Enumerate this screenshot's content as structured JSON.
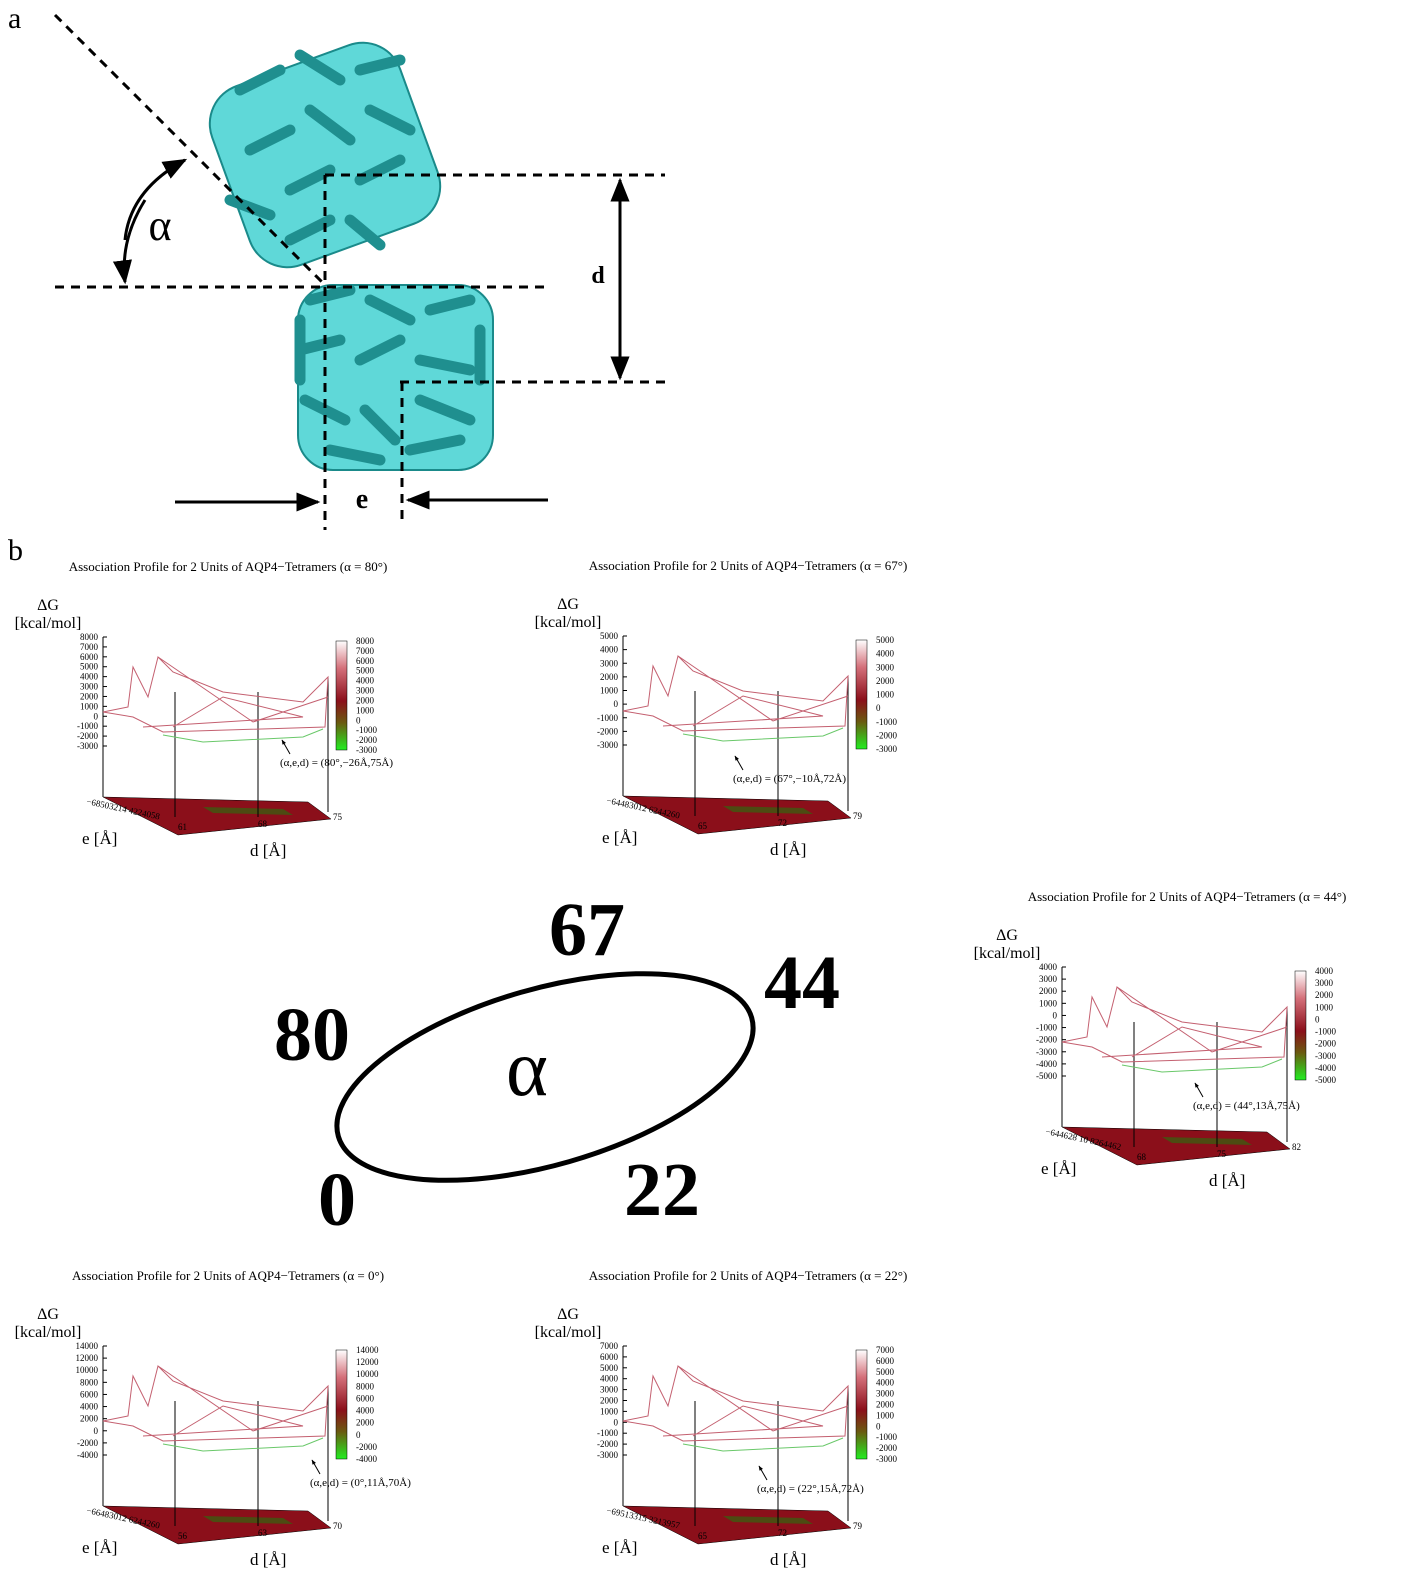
{
  "panel_a": {
    "label": "a",
    "angle": "α",
    "distance": "d",
    "offset": "e"
  },
  "panel_b": {
    "label": "b",
    "plots": [
      {
        "title": "Association Profile for 2 Units of AQP4−Tetramers (α = 80°)",
        "z_label": "ΔG",
        "z_unit": "[kcal/mol]",
        "z_ticks": [
          8000,
          7000,
          6000,
          5000,
          4000,
          3000,
          2000,
          1000,
          0,
          -1000,
          -2000,
          -3000
        ],
        "colorbar_ticks": [
          8000,
          7000,
          6000,
          5000,
          4000,
          3000,
          2000,
          1000,
          0,
          -1000,
          -2000,
          -3000
        ],
        "e_label": "e [Å]",
        "e_ticks": "−68503214 4224058",
        "d_label": "d [Å]",
        "d_ticks": [
          "61",
          "68",
          "75"
        ],
        "annotation": "(α,e,d) = (80°,−26Å,75Å)"
      },
      {
        "title": "Association Profile for 2 Units of AQP4−Tetramers (α = 67°)",
        "z_label": "ΔG",
        "z_unit": "[kcal/mol]",
        "z_ticks": [
          5000,
          4000,
          3000,
          2000,
          1000,
          0,
          -1000,
          -2000,
          -3000
        ],
        "colorbar_ticks": [
          5000,
          4000,
          3000,
          2000,
          1000,
          0,
          -1000,
          -2000,
          -3000
        ],
        "e_label": "e [Å]",
        "e_ticks": "−64483012 6244260",
        "d_label": "d [Å]",
        "d_ticks": [
          "65",
          "72",
          "79"
        ],
        "annotation": "(α,e,d) = (67°,−10Å,72Å)"
      },
      {
        "title": "Association Profile for 2 Units of AQP4−Tetramers (α = 44°)",
        "z_label": "ΔG",
        "z_unit": "[kcal/mol]",
        "z_ticks": [
          4000,
          3000,
          2000,
          1000,
          0,
          -1000,
          -2000,
          -3000,
          -4000,
          -5000
        ],
        "colorbar_ticks": [
          4000,
          3000,
          2000,
          1000,
          0,
          -1000,
          -2000,
          -3000,
          -4000,
          -5000
        ],
        "e_label": "e [Å]",
        "e_ticks": "−644628 10 8264462",
        "d_label": "d [Å]",
        "d_ticks": [
          "68",
          "75",
          "82"
        ],
        "annotation": "(α,e,d) = (44°,13Å,75Å)"
      },
      {
        "title": "Association Profile for 2 Units of AQP4−Tetramers (α = 0°)",
        "z_label": "ΔG",
        "z_unit": "[kcal/mol]",
        "z_ticks": [
          14000,
          12000,
          10000,
          8000,
          6000,
          4000,
          2000,
          0,
          -2000,
          -4000
        ],
        "colorbar_ticks": [
          14000,
          12000,
          10000,
          8000,
          6000,
          4000,
          2000,
          0,
          -2000,
          -4000
        ],
        "e_label": "e [Å]",
        "e_ticks": "−66483012 6244260",
        "d_label": "d [Å]",
        "d_ticks": [
          "56",
          "63",
          "70"
        ],
        "annotation": "(α,e,d) = (0°,11Å,70Å)"
      },
      {
        "title": "Association Profile for 2 Units of AQP4−Tetramers (α = 22°)",
        "z_label": "ΔG",
        "z_unit": "[kcal/mol]",
        "z_ticks": [
          7000,
          6000,
          5000,
          4000,
          3000,
          2000,
          1000,
          0,
          -1000,
          -2000,
          -3000
        ],
        "colorbar_ticks": [
          7000,
          6000,
          5000,
          4000,
          3000,
          2000,
          1000,
          0,
          -1000,
          -2000,
          -3000
        ],
        "e_label": "e [Å]",
        "e_ticks": "−69513315 3213957",
        "d_label": "d [Å]",
        "d_ticks": [
          "65",
          "72",
          "79"
        ],
        "annotation": "(α,e,d) = (22°,15Å,72Å)"
      }
    ]
  },
  "diagram": {
    "center": "α",
    "angles": [
      "67",
      "44",
      "80",
      "0",
      "22"
    ]
  }
}
